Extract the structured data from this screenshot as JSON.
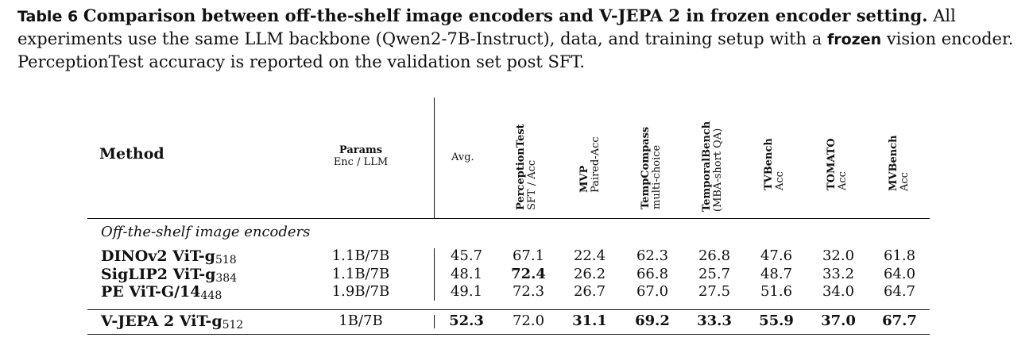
{
  "caption": {
    "label": "Table 6",
    "title": "Comparison between off-the-shelf image encoders and V-JEPA 2 in frozen encoder setting.",
    "body_before": "All experiments use the same LLM backbone (Qwen2-7B-Instruct), data, and training setup with a",
    "body_bold": "frozen",
    "body_after": "vision encoder. PerceptionTest accuracy is reported on the validation set post SFT."
  },
  "headers": {
    "method": "Method",
    "params_title": "Params",
    "params_sub": "Enc / LLM",
    "avg": "Avg.",
    "benchmarks": [
      {
        "title": "PerceptionTest",
        "sub": "SFT / Acc"
      },
      {
        "title": "MVP",
        "sub": "Paired-Acc"
      },
      {
        "title": "TempCompass",
        "sub": "multi-choice"
      },
      {
        "title": "TemporalBench",
        "sub": "(MBA-short QA)"
      },
      {
        "title": "TVBench",
        "sub": "Acc"
      },
      {
        "title": "TOMATO",
        "sub": "Acc"
      },
      {
        "title": "MVBench",
        "sub": "Acc"
      }
    ]
  },
  "section_label": "Off-the-shelf image encoders",
  "rows": [
    {
      "name": "DINOv2 ViT-g",
      "sub": "518",
      "params": "1.1B/7B",
      "values": [
        "45.7",
        "67.1",
        "22.4",
        "62.3",
        "26.8",
        "47.6",
        "32.0",
        "61.8"
      ],
      "bold": [
        false,
        false,
        false,
        false,
        false,
        false,
        false,
        false
      ]
    },
    {
      "name": "SigLIP2 ViT-g",
      "sub": "384",
      "params": "1.1B/7B",
      "values": [
        "48.1",
        "72.4",
        "26.2",
        "66.8",
        "25.7",
        "48.7",
        "33.2",
        "64.0"
      ],
      "bold": [
        false,
        true,
        false,
        false,
        false,
        false,
        false,
        false
      ]
    },
    {
      "name": "PE ViT-G/14",
      "sub": "448",
      "params": "1.9B/7B",
      "values": [
        "49.1",
        "72.3",
        "26.7",
        "67.0",
        "27.5",
        "51.6",
        "34.0",
        "64.7"
      ],
      "bold": [
        false,
        false,
        false,
        false,
        false,
        false,
        false,
        false
      ]
    }
  ],
  "final_row": {
    "name": "V-JEPA 2 ViT-g",
    "sub": "512",
    "params": "1B/7B",
    "values": [
      "52.3",
      "72.0",
      "31.1",
      "69.2",
      "33.3",
      "55.9",
      "37.0",
      "67.7"
    ],
    "bold": [
      true,
      false,
      true,
      true,
      true,
      true,
      true,
      true
    ]
  }
}
